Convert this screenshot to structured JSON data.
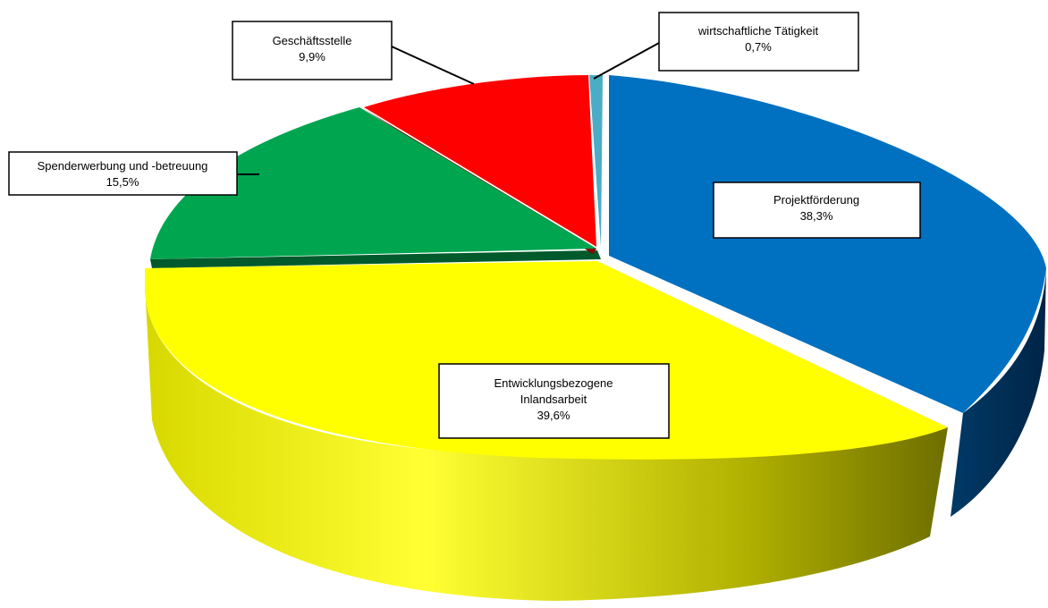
{
  "chart_data": {
    "type": "pie",
    "style": "3d-exploded",
    "title": "",
    "slices": [
      {
        "name": "Projektförderung",
        "value": 38.3,
        "display": "38,3%",
        "color": "#0070C0",
        "side": "#003F6E"
      },
      {
        "name": "Entwicklungsbezogene Inlandsarbeit",
        "line1": "Entwicklungsbezogene",
        "line2": "Inlandsarbeit",
        "value": 39.6,
        "display": "39,6%",
        "color": "#FFFF00",
        "side": "#8C8C00"
      },
      {
        "name": "Spenderwerbung und -betreuung",
        "value": 15.5,
        "display": "15,5%",
        "color": "#00A550",
        "side": "#005A2B"
      },
      {
        "name": "Geschäftsstelle",
        "value": 9.9,
        "display": "9,9%",
        "color": "#FF0000",
        "side": "#8C0000"
      },
      {
        "name": "wirtschaftliche Tätigkeit",
        "value": 0.7,
        "display": "0,7%",
        "color": "#4BACC6",
        "side": "#2A6F82"
      }
    ]
  }
}
